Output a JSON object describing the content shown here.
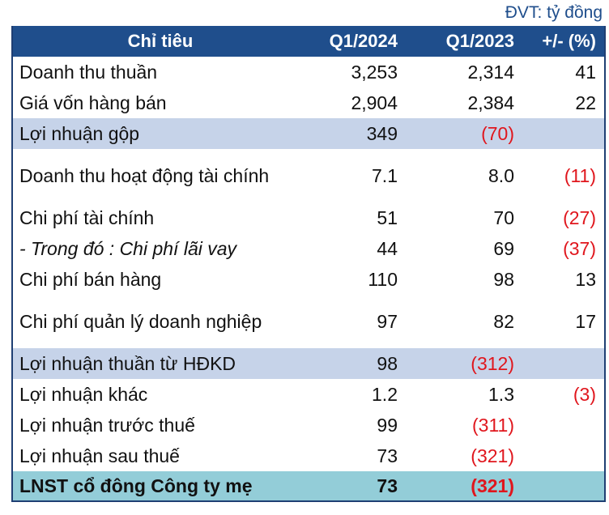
{
  "unit_note": "ĐVT: tỷ đồng",
  "header": {
    "label": "Chỉ tiêu",
    "col1": "Q1/2024",
    "col2": "Q1/2023",
    "col3": "+/- (%)"
  },
  "rows": [
    {
      "label": "Doanh thu thuần",
      "q1_2024": "3,253",
      "q1_2023": "2,314",
      "change": "41"
    },
    {
      "label": "Giá vốn hàng bán",
      "q1_2024": "2,904",
      "q1_2023": "2,384",
      "change": "22"
    },
    {
      "label": "Lợi nhuận gộp",
      "q1_2024": "349",
      "q1_2023": "(70)",
      "change": ""
    },
    {
      "label": "Doanh thu hoạt động tài chính",
      "q1_2024": "7.1",
      "q1_2023": "8.0",
      "change": "(11)"
    },
    {
      "label": "Chi phí tài chính",
      "q1_2024": "51",
      "q1_2023": "70",
      "change": "(27)"
    },
    {
      "label": "- Trong đó : Chi phí lãi vay",
      "q1_2024": "44",
      "q1_2023": "69",
      "change": "(37)"
    },
    {
      "label": "Chi phí bán hàng",
      "q1_2024": "110",
      "q1_2023": "98",
      "change": "13"
    },
    {
      "label": "Chi phí quản lý doanh nghiệp",
      "q1_2024": "97",
      "q1_2023": "82",
      "change": "17"
    },
    {
      "label": "Lợi nhuận thuần từ HĐKD",
      "q1_2024": "98",
      "q1_2023": "(312)",
      "change": ""
    },
    {
      "label": "Lợi nhuận khác",
      "q1_2024": "1.2",
      "q1_2023": "1.3",
      "change": "(3)"
    },
    {
      "label": "Lợi nhuận trước thuế",
      "q1_2024": "99",
      "q1_2023": "(311)",
      "change": ""
    },
    {
      "label": "Lợi nhuận sau thuế",
      "q1_2024": "73",
      "q1_2023": "(321)",
      "change": ""
    },
    {
      "label": "LNST cổ đông Công ty mẹ",
      "q1_2024": "73",
      "q1_2023": "(321)",
      "change": ""
    }
  ],
  "colors": {
    "header_bg": "#1f4e8c",
    "highlight_bg": "#c6d3e9",
    "total_bg": "#93cdd8",
    "negative": "#e0161d"
  }
}
